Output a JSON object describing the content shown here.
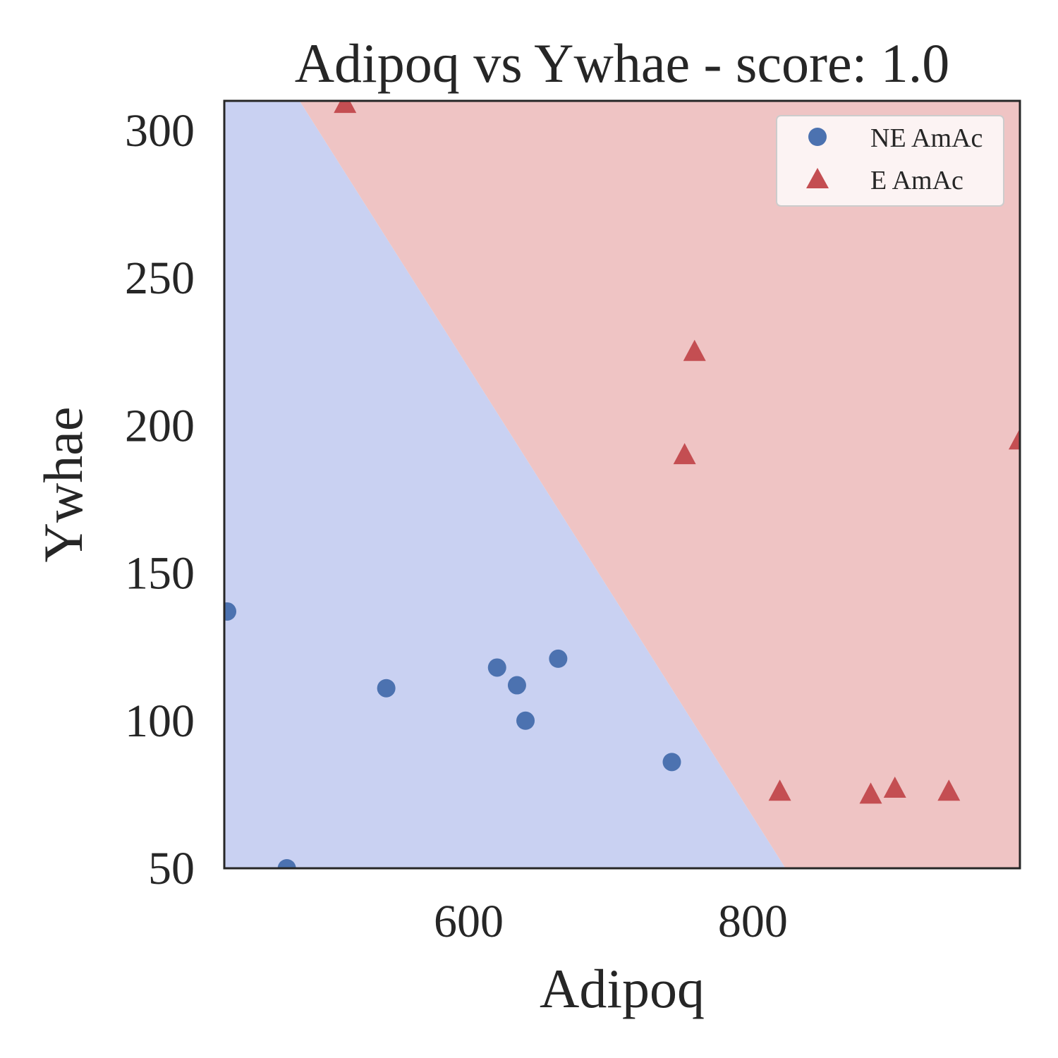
{
  "chart_data": {
    "type": "scatter",
    "title": "Adipoq vs Ywhae - score: 1.0",
    "xlabel": "Adipoq",
    "ylabel": "Ywhae",
    "xlim": [
      428,
      988
    ],
    "ylim": [
      50,
      310
    ],
    "x_ticks": [
      600,
      800
    ],
    "y_ticks": [
      50,
      100,
      150,
      200,
      250,
      300
    ],
    "grid": false,
    "legend_position": "top-right",
    "decision_boundary": {
      "line": [
        [
          481,
          310
        ],
        [
          823,
          50
        ]
      ],
      "region_colors": {
        "NE AmAc": "#c9d1f2",
        "E AmAc": "#efc4c4"
      }
    },
    "series": [
      {
        "name": "NE AmAc",
        "marker": "circle",
        "color": "#4c72b0",
        "points": [
          [
            430,
            137
          ],
          [
            472,
            50
          ],
          [
            542,
            111
          ],
          [
            620,
            118
          ],
          [
            634,
            112
          ],
          [
            640,
            100
          ],
          [
            663,
            121
          ],
          [
            743,
            86
          ]
        ]
      },
      {
        "name": "E AmAc",
        "marker": "triangle",
        "color": "#c44e52",
        "points": [
          [
            513,
            309
          ],
          [
            759,
            225
          ],
          [
            752,
            190
          ],
          [
            819,
            76
          ],
          [
            883,
            75
          ],
          [
            900,
            77
          ],
          [
            938,
            76
          ],
          [
            988,
            195
          ]
        ]
      }
    ]
  }
}
